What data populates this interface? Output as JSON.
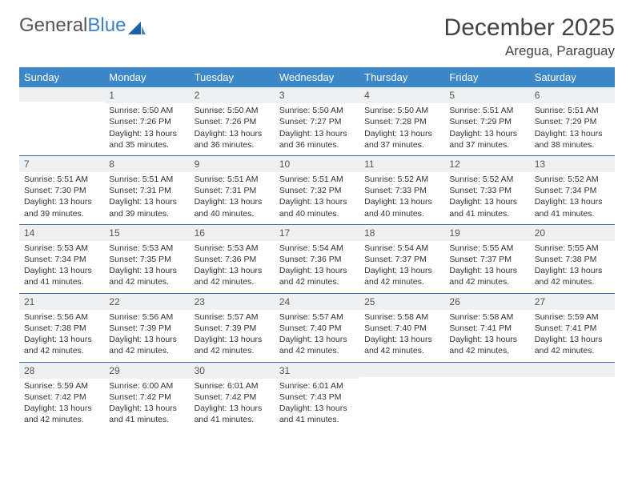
{
  "logo": {
    "word1": "General",
    "word2": "Blue"
  },
  "title": "December 2025",
  "location": "Aregua, Paraguay",
  "colors": {
    "header_bg": "#3b87c8",
    "header_text": "#ffffff",
    "daynum_bg": "#eef0f2",
    "week_border": "#3b6fa0",
    "text": "#333333",
    "logo_gray": "#555555",
    "logo_blue": "#3b7fc4"
  },
  "day_names": [
    "Sunday",
    "Monday",
    "Tuesday",
    "Wednesday",
    "Thursday",
    "Friday",
    "Saturday"
  ],
  "weeks": [
    [
      {
        "n": "",
        "sr": "",
        "ss": "",
        "d1": "",
        "d2": ""
      },
      {
        "n": "1",
        "sr": "Sunrise: 5:50 AM",
        "ss": "Sunset: 7:26 PM",
        "d1": "Daylight: 13 hours",
        "d2": "and 35 minutes."
      },
      {
        "n": "2",
        "sr": "Sunrise: 5:50 AM",
        "ss": "Sunset: 7:26 PM",
        "d1": "Daylight: 13 hours",
        "d2": "and 36 minutes."
      },
      {
        "n": "3",
        "sr": "Sunrise: 5:50 AM",
        "ss": "Sunset: 7:27 PM",
        "d1": "Daylight: 13 hours",
        "d2": "and 36 minutes."
      },
      {
        "n": "4",
        "sr": "Sunrise: 5:50 AM",
        "ss": "Sunset: 7:28 PM",
        "d1": "Daylight: 13 hours",
        "d2": "and 37 minutes."
      },
      {
        "n": "5",
        "sr": "Sunrise: 5:51 AM",
        "ss": "Sunset: 7:29 PM",
        "d1": "Daylight: 13 hours",
        "d2": "and 37 minutes."
      },
      {
        "n": "6",
        "sr": "Sunrise: 5:51 AM",
        "ss": "Sunset: 7:29 PM",
        "d1": "Daylight: 13 hours",
        "d2": "and 38 minutes."
      }
    ],
    [
      {
        "n": "7",
        "sr": "Sunrise: 5:51 AM",
        "ss": "Sunset: 7:30 PM",
        "d1": "Daylight: 13 hours",
        "d2": "and 39 minutes."
      },
      {
        "n": "8",
        "sr": "Sunrise: 5:51 AM",
        "ss": "Sunset: 7:31 PM",
        "d1": "Daylight: 13 hours",
        "d2": "and 39 minutes."
      },
      {
        "n": "9",
        "sr": "Sunrise: 5:51 AM",
        "ss": "Sunset: 7:31 PM",
        "d1": "Daylight: 13 hours",
        "d2": "and 40 minutes."
      },
      {
        "n": "10",
        "sr": "Sunrise: 5:51 AM",
        "ss": "Sunset: 7:32 PM",
        "d1": "Daylight: 13 hours",
        "d2": "and 40 minutes."
      },
      {
        "n": "11",
        "sr": "Sunrise: 5:52 AM",
        "ss": "Sunset: 7:33 PM",
        "d1": "Daylight: 13 hours",
        "d2": "and 40 minutes."
      },
      {
        "n": "12",
        "sr": "Sunrise: 5:52 AM",
        "ss": "Sunset: 7:33 PM",
        "d1": "Daylight: 13 hours",
        "d2": "and 41 minutes."
      },
      {
        "n": "13",
        "sr": "Sunrise: 5:52 AM",
        "ss": "Sunset: 7:34 PM",
        "d1": "Daylight: 13 hours",
        "d2": "and 41 minutes."
      }
    ],
    [
      {
        "n": "14",
        "sr": "Sunrise: 5:53 AM",
        "ss": "Sunset: 7:34 PM",
        "d1": "Daylight: 13 hours",
        "d2": "and 41 minutes."
      },
      {
        "n": "15",
        "sr": "Sunrise: 5:53 AM",
        "ss": "Sunset: 7:35 PM",
        "d1": "Daylight: 13 hours",
        "d2": "and 42 minutes."
      },
      {
        "n": "16",
        "sr": "Sunrise: 5:53 AM",
        "ss": "Sunset: 7:36 PM",
        "d1": "Daylight: 13 hours",
        "d2": "and 42 minutes."
      },
      {
        "n": "17",
        "sr": "Sunrise: 5:54 AM",
        "ss": "Sunset: 7:36 PM",
        "d1": "Daylight: 13 hours",
        "d2": "and 42 minutes."
      },
      {
        "n": "18",
        "sr": "Sunrise: 5:54 AM",
        "ss": "Sunset: 7:37 PM",
        "d1": "Daylight: 13 hours",
        "d2": "and 42 minutes."
      },
      {
        "n": "19",
        "sr": "Sunrise: 5:55 AM",
        "ss": "Sunset: 7:37 PM",
        "d1": "Daylight: 13 hours",
        "d2": "and 42 minutes."
      },
      {
        "n": "20",
        "sr": "Sunrise: 5:55 AM",
        "ss": "Sunset: 7:38 PM",
        "d1": "Daylight: 13 hours",
        "d2": "and 42 minutes."
      }
    ],
    [
      {
        "n": "21",
        "sr": "Sunrise: 5:56 AM",
        "ss": "Sunset: 7:38 PM",
        "d1": "Daylight: 13 hours",
        "d2": "and 42 minutes."
      },
      {
        "n": "22",
        "sr": "Sunrise: 5:56 AM",
        "ss": "Sunset: 7:39 PM",
        "d1": "Daylight: 13 hours",
        "d2": "and 42 minutes."
      },
      {
        "n": "23",
        "sr": "Sunrise: 5:57 AM",
        "ss": "Sunset: 7:39 PM",
        "d1": "Daylight: 13 hours",
        "d2": "and 42 minutes."
      },
      {
        "n": "24",
        "sr": "Sunrise: 5:57 AM",
        "ss": "Sunset: 7:40 PM",
        "d1": "Daylight: 13 hours",
        "d2": "and 42 minutes."
      },
      {
        "n": "25",
        "sr": "Sunrise: 5:58 AM",
        "ss": "Sunset: 7:40 PM",
        "d1": "Daylight: 13 hours",
        "d2": "and 42 minutes."
      },
      {
        "n": "26",
        "sr": "Sunrise: 5:58 AM",
        "ss": "Sunset: 7:41 PM",
        "d1": "Daylight: 13 hours",
        "d2": "and 42 minutes."
      },
      {
        "n": "27",
        "sr": "Sunrise: 5:59 AM",
        "ss": "Sunset: 7:41 PM",
        "d1": "Daylight: 13 hours",
        "d2": "and 42 minutes."
      }
    ],
    [
      {
        "n": "28",
        "sr": "Sunrise: 5:59 AM",
        "ss": "Sunset: 7:42 PM",
        "d1": "Daylight: 13 hours",
        "d2": "and 42 minutes."
      },
      {
        "n": "29",
        "sr": "Sunrise: 6:00 AM",
        "ss": "Sunset: 7:42 PM",
        "d1": "Daylight: 13 hours",
        "d2": "and 41 minutes."
      },
      {
        "n": "30",
        "sr": "Sunrise: 6:01 AM",
        "ss": "Sunset: 7:42 PM",
        "d1": "Daylight: 13 hours",
        "d2": "and 41 minutes."
      },
      {
        "n": "31",
        "sr": "Sunrise: 6:01 AM",
        "ss": "Sunset: 7:43 PM",
        "d1": "Daylight: 13 hours",
        "d2": "and 41 minutes."
      },
      {
        "n": "",
        "sr": "",
        "ss": "",
        "d1": "",
        "d2": ""
      },
      {
        "n": "",
        "sr": "",
        "ss": "",
        "d1": "",
        "d2": ""
      },
      {
        "n": "",
        "sr": "",
        "ss": "",
        "d1": "",
        "d2": ""
      }
    ]
  ]
}
